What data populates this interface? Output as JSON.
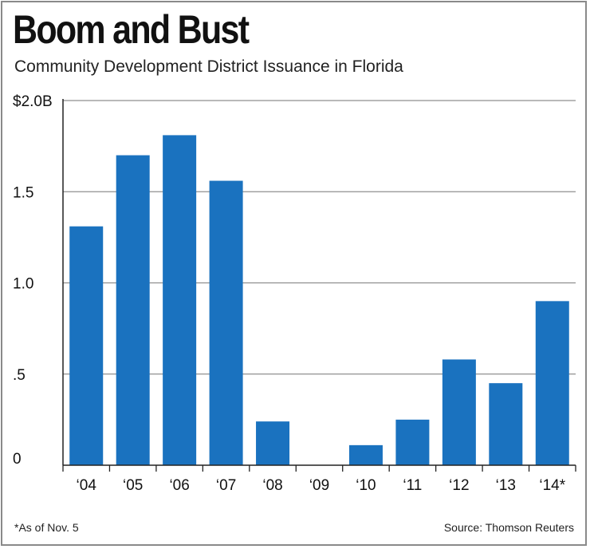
{
  "title": "Boom and Bust",
  "subtitle": "Community Development District Issuance in Florida",
  "footnote": "*As of Nov. 5",
  "source": "Source: Thomson Reuters",
  "colors": {
    "bar": "#1a72bf",
    "grid": "#8f8f8f",
    "axis": "#222222"
  },
  "chart_data": {
    "type": "bar",
    "title": "Boom and Bust",
    "subtitle": "Community Development District Issuance in Florida",
    "xlabel": "",
    "ylabel": "",
    "categories": [
      "‘04",
      "‘05",
      "‘06",
      "‘07",
      "‘08",
      "‘09",
      "‘10",
      "‘11",
      "‘12",
      "‘13",
      "‘14*"
    ],
    "values": [
      1.31,
      1.7,
      1.81,
      1.56,
      0.24,
      0.0,
      0.11,
      0.25,
      0.58,
      0.45,
      0.9
    ],
    "units": "billions of dollars",
    "ylim": [
      0,
      2.0
    ],
    "yticks": [
      0,
      0.5,
      1.0,
      1.5,
      2.0
    ],
    "ytick_labels": [
      "0",
      ".5",
      "1.0",
      "1.5",
      "$2.0B"
    ],
    "grid": true
  }
}
